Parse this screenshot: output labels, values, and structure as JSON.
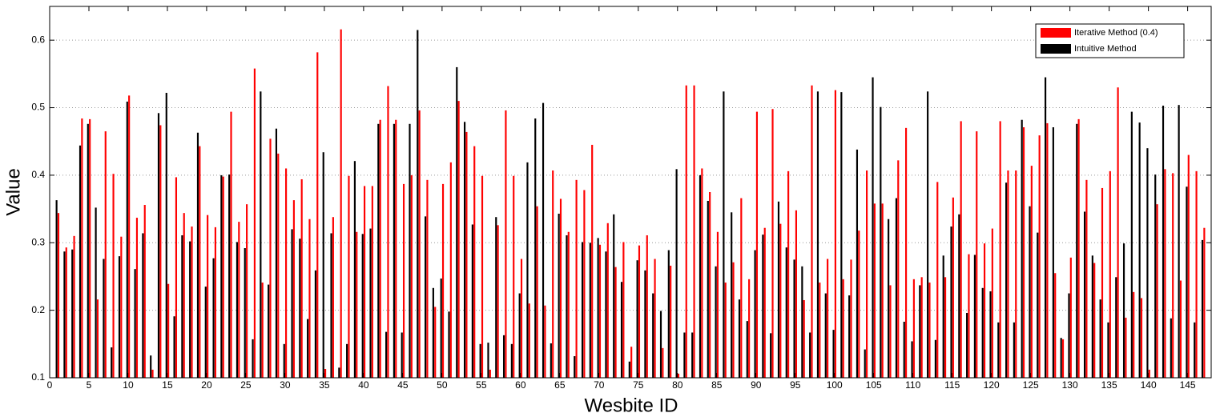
{
  "chart_data": {
    "type": "bar",
    "xlabel": "Wesbite ID",
    "ylabel": "Value",
    "x": [
      1,
      2,
      3,
      4,
      5,
      6,
      7,
      8,
      9,
      10,
      11,
      12,
      13,
      14,
      15,
      16,
      17,
      18,
      19,
      20,
      21,
      22,
      23,
      24,
      25,
      26,
      27,
      28,
      29,
      30,
      31,
      32,
      33,
      34,
      35,
      36,
      37,
      38,
      39,
      40,
      41,
      42,
      43,
      44,
      45,
      46,
      47,
      48,
      49,
      50,
      51,
      52,
      53,
      54,
      55,
      56,
      57,
      58,
      59,
      60,
      61,
      62,
      63,
      64,
      65,
      66,
      67,
      68,
      69,
      70,
      71,
      72,
      73,
      74,
      75,
      76,
      77,
      78,
      79,
      80,
      81,
      82,
      83,
      84,
      85,
      86,
      87,
      88,
      89,
      90,
      91,
      92,
      93,
      94,
      95,
      96,
      97,
      98,
      99,
      100,
      101,
      102,
      103,
      104,
      105,
      106,
      107,
      108,
      109,
      110,
      111,
      112,
      113,
      114,
      115,
      116,
      117,
      118,
      119,
      120,
      121,
      122,
      123,
      124,
      125,
      126,
      127,
      128,
      129,
      130,
      131,
      132,
      133,
      134,
      135,
      136,
      137,
      138,
      139,
      140,
      141,
      142,
      143,
      144,
      145,
      146,
      147
    ],
    "series": [
      {
        "name": "Iterative Method (0.4)",
        "color": "#ff0000",
        "values": [
          0.344,
          0.293,
          0.31,
          0.484,
          0.483,
          0.216,
          0.465,
          0.402,
          0.309,
          0.518,
          0.337,
          0.356,
          0.112,
          0.474,
          0.239,
          0.397,
          0.344,
          0.324,
          0.443,
          0.341,
          0.323,
          0.398,
          0.494,
          0.331,
          0.357,
          0.558,
          0.241,
          0.454,
          0.432,
          0.41,
          0.363,
          0.394,
          0.335,
          0.582,
          0.113,
          0.338,
          0.616,
          0.399,
          0.316,
          0.384,
          0.384,
          0.482,
          0.532,
          0.482,
          0.387,
          0.4,
          0.496,
          0.393,
          0.205,
          0.387,
          0.419,
          0.51,
          0.464,
          0.443,
          0.399,
          0.112,
          0.326,
          0.496,
          0.399,
          0.276,
          0.21,
          0.354,
          0.207,
          0.407,
          0.365,
          0.316,
          0.393,
          0.378,
          0.445,
          0.297,
          0.329,
          0.264,
          0.301,
          0.146,
          0.296,
          0.311,
          0.276,
          0.144,
          0.266,
          0.106,
          0.533,
          0.533,
          0.41,
          0.375,
          0.316,
          0.241,
          0.271,
          0.366,
          0.246,
          0.494,
          0.322,
          0.498,
          0.328,
          0.406,
          0.348,
          0.215,
          0.533,
          0.241,
          0.276,
          0.526,
          0.246,
          0.275,
          0.318,
          0.407,
          0.358,
          0.358,
          0.237,
          0.422,
          0.47,
          0.246,
          0.249,
          0.241,
          0.39,
          0.249,
          0.367,
          0.48,
          0.283,
          0.465,
          0.299,
          0.321,
          0.48,
          0.407,
          0.407,
          0.471,
          0.414,
          0.459,
          0.477,
          0.255,
          0.157,
          0.278,
          0.483,
          0.393,
          0.27,
          0.381,
          0.406,
          0.53,
          0.189,
          0.227,
          0.218,
          0.112,
          0.357,
          0.409,
          0.403,
          0.244,
          0.43,
          0.406,
          0.322
        ]
      },
      {
        "name": "Intuitive Method",
        "color": "#000000",
        "values": [
          0.363,
          0.287,
          0.29,
          0.444,
          0.476,
          0.352,
          0.276,
          0.145,
          0.28,
          0.509,
          0.261,
          0.314,
          0.133,
          0.492,
          0.522,
          0.191,
          0.311,
          0.302,
          0.463,
          0.235,
          0.277,
          0.4,
          0.401,
          0.301,
          0.292,
          0.157,
          0.524,
          0.238,
          0.469,
          0.15,
          0.32,
          0.306,
          0.187,
          0.259,
          0.434,
          0.314,
          0.115,
          0.15,
          0.421,
          0.313,
          0.321,
          0.476,
          0.168,
          0.476,
          0.167,
          0.476,
          0.615,
          0.339,
          0.233,
          0.247,
          0.198,
          0.56,
          0.479,
          0.327,
          0.15,
          0.152,
          0.338,
          0.163,
          0.15,
          0.225,
          0.419,
          0.484,
          0.507,
          0.151,
          0.343,
          0.311,
          0.132,
          0.301,
          0.3,
          0.307,
          0.287,
          0.342,
          0.242,
          0.124,
          0.274,
          0.259,
          0.225,
          0.199,
          0.289,
          0.409,
          0.167,
          0.167,
          0.4,
          0.362,
          0.265,
          0.524,
          0.345,
          0.216,
          0.184,
          0.289,
          0.312,
          0.166,
          0.361,
          0.293,
          0.275,
          0.265,
          0.167,
          0.524,
          0.225,
          0.171,
          0.523,
          0.222,
          0.438,
          0.142,
          0.545,
          0.501,
          0.335,
          0.366,
          0.183,
          0.154,
          0.237,
          0.524,
          0.156,
          0.281,
          0.324,
          0.342,
          0.196,
          0.282,
          0.233,
          0.228,
          0.182,
          0.389,
          0.182,
          0.482,
          0.354,
          0.315,
          0.545,
          0.471,
          0.159,
          0.225,
          0.476,
          0.346,
          0.281,
          0.216,
          0.182,
          0.249,
          0.299,
          0.494,
          0.478,
          0.44,
          0.401,
          0.503,
          0.188,
          0.504,
          0.383,
          0.182,
          0.304
        ]
      }
    ],
    "xlim": [
      0,
      148
    ],
    "xticks": [
      0,
      5,
      10,
      15,
      20,
      25,
      30,
      35,
      40,
      45,
      50,
      55,
      60,
      65,
      70,
      75,
      80,
      85,
      90,
      95,
      100,
      105,
      110,
      115,
      120,
      125,
      130,
      135,
      140,
      145
    ],
    "ylim": [
      0.1,
      0.65
    ],
    "yticks": [
      0.1,
      0.2,
      0.3,
      0.4,
      0.5,
      0.6
    ],
    "grid": true,
    "legend": "upper right"
  }
}
